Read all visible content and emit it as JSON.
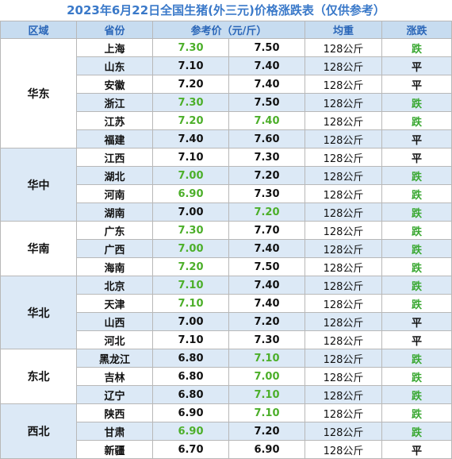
{
  "title": "2023年6月22日全国生猪(外三元)价格涨跌表（仅供参考）",
  "headers": {
    "region": "区域",
    "province": "省份",
    "price": "参考价（元/斤）",
    "weight": "均重",
    "trend": "涨跌"
  },
  "colors": {
    "title": "#3a79c9",
    "header_bg": "#c7dcf0",
    "band_bg": "#dce9f6",
    "price_highlight": "#4caf2a",
    "trend_up": "#3aa832"
  },
  "groups": [
    {
      "region": "华东",
      "rows": [
        {
          "province": "上海",
          "p1": "7.30",
          "p1_hl": true,
          "p2": "7.50",
          "p2_hl": false,
          "weight": "128公斤",
          "trend": "跌",
          "trend_hl": true
        },
        {
          "province": "山东",
          "p1": "7.10",
          "p1_hl": false,
          "p2": "7.40",
          "p2_hl": false,
          "weight": "128公斤",
          "trend": "平",
          "trend_hl": false
        },
        {
          "province": "安徽",
          "p1": "7.20",
          "p1_hl": false,
          "p2": "7.40",
          "p2_hl": false,
          "weight": "128公斤",
          "trend": "平",
          "trend_hl": false
        },
        {
          "province": "浙江",
          "p1": "7.30",
          "p1_hl": true,
          "p2": "7.50",
          "p2_hl": false,
          "weight": "128公斤",
          "trend": "跌",
          "trend_hl": true
        },
        {
          "province": "江苏",
          "p1": "7.20",
          "p1_hl": true,
          "p2": "7.40",
          "p2_hl": true,
          "weight": "128公斤",
          "trend": "跌",
          "trend_hl": true
        },
        {
          "province": "福建",
          "p1": "7.40",
          "p1_hl": false,
          "p2": "7.60",
          "p2_hl": false,
          "weight": "128公斤",
          "trend": "平",
          "trend_hl": false
        }
      ]
    },
    {
      "region": "华中",
      "rows": [
        {
          "province": "江西",
          "p1": "7.10",
          "p1_hl": false,
          "p2": "7.30",
          "p2_hl": false,
          "weight": "128公斤",
          "trend": "平",
          "trend_hl": false
        },
        {
          "province": "湖北",
          "p1": "7.00",
          "p1_hl": true,
          "p2": "7.20",
          "p2_hl": false,
          "weight": "128公斤",
          "trend": "跌",
          "trend_hl": true
        },
        {
          "province": "河南",
          "p1": "6.90",
          "p1_hl": true,
          "p2": "7.30",
          "p2_hl": false,
          "weight": "128公斤",
          "trend": "跌",
          "trend_hl": true
        },
        {
          "province": "湖南",
          "p1": "7.00",
          "p1_hl": false,
          "p2": "7.20",
          "p2_hl": true,
          "weight": "128公斤",
          "trend": "跌",
          "trend_hl": true
        }
      ]
    },
    {
      "region": "华南",
      "rows": [
        {
          "province": "广东",
          "p1": "7.30",
          "p1_hl": true,
          "p2": "7.70",
          "p2_hl": false,
          "weight": "128公斤",
          "trend": "跌",
          "trend_hl": true
        },
        {
          "province": "广西",
          "p1": "7.00",
          "p1_hl": true,
          "p2": "7.40",
          "p2_hl": false,
          "weight": "128公斤",
          "trend": "跌",
          "trend_hl": true
        },
        {
          "province": "海南",
          "p1": "7.20",
          "p1_hl": true,
          "p2": "7.50",
          "p2_hl": false,
          "weight": "128公斤",
          "trend": "跌",
          "trend_hl": true
        }
      ]
    },
    {
      "region": "华北",
      "rows": [
        {
          "province": "北京",
          "p1": "7.10",
          "p1_hl": true,
          "p2": "7.40",
          "p2_hl": false,
          "weight": "128公斤",
          "trend": "跌",
          "trend_hl": true
        },
        {
          "province": "天津",
          "p1": "7.10",
          "p1_hl": true,
          "p2": "7.40",
          "p2_hl": false,
          "weight": "128公斤",
          "trend": "跌",
          "trend_hl": true
        },
        {
          "province": "山西",
          "p1": "7.00",
          "p1_hl": false,
          "p2": "7.20",
          "p2_hl": false,
          "weight": "128公斤",
          "trend": "平",
          "trend_hl": false
        },
        {
          "province": "河北",
          "p1": "7.10",
          "p1_hl": false,
          "p2": "7.30",
          "p2_hl": false,
          "weight": "128公斤",
          "trend": "平",
          "trend_hl": false
        }
      ]
    },
    {
      "region": "东北",
      "rows": [
        {
          "province": "黑龙江",
          "p1": "6.80",
          "p1_hl": false,
          "p2": "7.10",
          "p2_hl": true,
          "weight": "128公斤",
          "trend": "跌",
          "trend_hl": true
        },
        {
          "province": "吉林",
          "p1": "6.80",
          "p1_hl": false,
          "p2": "7.00",
          "p2_hl": true,
          "weight": "128公斤",
          "trend": "跌",
          "trend_hl": true
        },
        {
          "province": "辽宁",
          "p1": "6.80",
          "p1_hl": false,
          "p2": "7.10",
          "p2_hl": true,
          "weight": "128公斤",
          "trend": "跌",
          "trend_hl": true
        }
      ]
    },
    {
      "region": "西北",
      "rows": [
        {
          "province": "陕西",
          "p1": "6.90",
          "p1_hl": false,
          "p2": "7.10",
          "p2_hl": true,
          "weight": "128公斤",
          "trend": "跌",
          "trend_hl": true
        },
        {
          "province": "甘肃",
          "p1": "6.90",
          "p1_hl": true,
          "p2": "7.20",
          "p2_hl": false,
          "weight": "128公斤",
          "trend": "跌",
          "trend_hl": true
        },
        {
          "province": "新疆",
          "p1": "6.70",
          "p1_hl": false,
          "p2": "6.90",
          "p2_hl": false,
          "weight": "128公斤",
          "trend": "平",
          "trend_hl": false
        }
      ]
    }
  ]
}
